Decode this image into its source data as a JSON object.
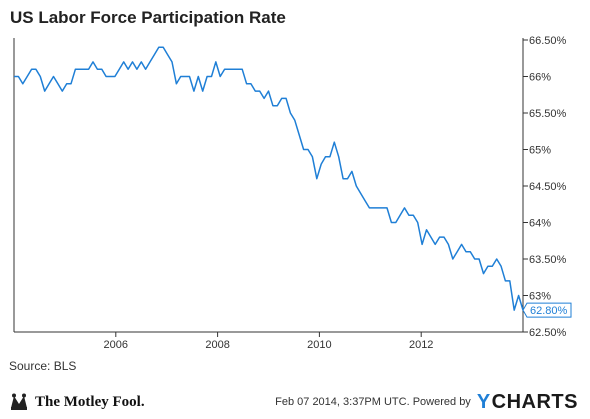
{
  "title": "US Labor Force Participation Rate",
  "source": "Source: BLS",
  "footer": {
    "timestamp": "Feb 07 2014, 3:37PM UTC.",
    "powered_by": "Powered by",
    "ycharts_mark": "Y",
    "ycharts_rest": "CHARTS",
    "fool_brand": "The Motley Fool."
  },
  "colors": {
    "series": "#1f7fd6",
    "axis": "#333333"
  },
  "chart_data": {
    "type": "line",
    "title": "US Labor Force Participation Rate",
    "xlabel": "",
    "ylabel": "",
    "x_ticks": [
      "2006",
      "2008",
      "2010",
      "2012"
    ],
    "y_ticks": [
      "62.50%",
      "63%",
      "63.50%",
      "64%",
      "64.50%",
      "65%",
      "65.50%",
      "66%",
      "66.50%"
    ],
    "y_tick_values": [
      62.5,
      63,
      63.5,
      64,
      64.5,
      65,
      65.5,
      66,
      66.5
    ],
    "ylim": [
      62.5,
      66.5
    ],
    "grid": false,
    "last_value_label": "62.80%",
    "x_start": "2004-01",
    "x_end": "2014-01",
    "series": [
      {
        "values": [
          66.0,
          66.0,
          65.9,
          66.0,
          66.1,
          66.1,
          66.0,
          65.8,
          65.9,
          66.0,
          65.9,
          65.8,
          65.9,
          65.9,
          66.1,
          66.1,
          66.1,
          66.1,
          66.2,
          66.1,
          66.1,
          66.0,
          66.0,
          66.0,
          66.1,
          66.2,
          66.1,
          66.2,
          66.1,
          66.2,
          66.1,
          66.2,
          66.3,
          66.4,
          66.4,
          66.3,
          66.2,
          65.9,
          66.0,
          66.0,
          66.0,
          65.8,
          66.0,
          65.8,
          66.0,
          66.0,
          66.2,
          66.0,
          66.1,
          66.1,
          66.1,
          66.1,
          66.1,
          65.9,
          65.9,
          65.8,
          65.8,
          65.7,
          65.8,
          65.6,
          65.6,
          65.7,
          65.7,
          65.5,
          65.4,
          65.2,
          65.0,
          65.0,
          64.9,
          64.6,
          64.8,
          64.9,
          64.9,
          65.1,
          64.9,
          64.6,
          64.6,
          64.7,
          64.5,
          64.4,
          64.3,
          64.2,
          64.2,
          64.2,
          64.2,
          64.2,
          64.0,
          64.0,
          64.1,
          64.2,
          64.1,
          64.1,
          64.0,
          63.7,
          63.9,
          63.8,
          63.7,
          63.8,
          63.8,
          63.7,
          63.5,
          63.6,
          63.7,
          63.6,
          63.6,
          63.5,
          63.5,
          63.3,
          63.4,
          63.4,
          63.5,
          63.4,
          63.2,
          63.2,
          62.8,
          63.0,
          62.8
        ]
      }
    ]
  }
}
